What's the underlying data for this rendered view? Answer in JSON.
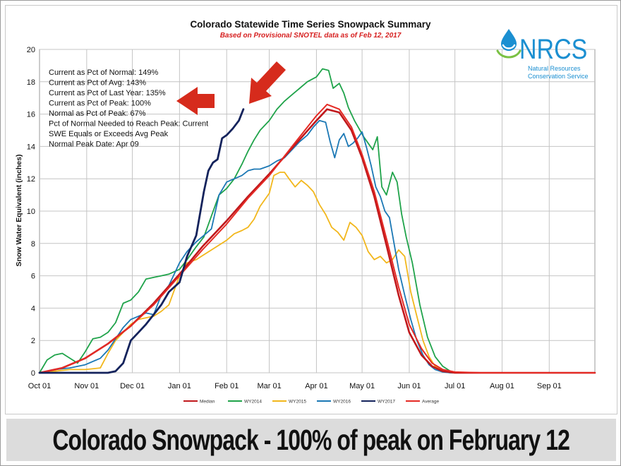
{
  "chart_data": {
    "type": "line",
    "title": "Colorado Statewide Time Series Snowpack Summary",
    "subtitle": "Based on Provisional SNOTEL data as of Feb 12, 2017",
    "ylabel": "Snow Water Equivalent (inches)",
    "xlabel": "",
    "ylim": [
      0,
      20
    ],
    "y_ticks": [
      0,
      2,
      4,
      6,
      8,
      10,
      12,
      14,
      16,
      18,
      20
    ],
    "x_range_days": [
      0,
      365
    ],
    "x_ticks": [
      {
        "label": "Oct 01",
        "day": 0
      },
      {
        "label": "Nov 01",
        "day": 31
      },
      {
        "label": "Dec 01",
        "day": 61
      },
      {
        "label": "Jan 01",
        "day": 92
      },
      {
        "label": "Feb 01",
        "day": 123
      },
      {
        "label": "Mar 01",
        "day": 151
      },
      {
        "label": "Apr 01",
        "day": 182
      },
      {
        "label": "May 01",
        "day": 212
      },
      {
        "label": "Jun 01",
        "day": 243
      },
      {
        "label": "Jul 01",
        "day": 273
      },
      {
        "label": "Aug 01",
        "day": 304
      },
      {
        "label": "Sep 01",
        "day": 335
      }
    ],
    "grid": true,
    "legend_placement": "bottom",
    "annotations": [
      "Current  as Pct of Normal: 149%",
      "Current  as Pct of Avg: 143%",
      "Current  as Pct of Last Year: 135%",
      "Current  as Pct of Peak: 100%",
      "Normal  as Pct of Peak: 67%",
      "Pct of Normal Needed  to Reach Peak: Current",
      "SWE Equals or Exceeds Avg Peak",
      "Normal Peak Date: Apr 09"
    ],
    "series": [
      {
        "name": "Median",
        "color": "#c0181c",
        "width": 2.6,
        "x": [
          0,
          15,
          30,
          45,
          60,
          75,
          92,
          107,
          123,
          137,
          151,
          166,
          182,
          189,
          197,
          205,
          212,
          220,
          228,
          236,
          243,
          251,
          258,
          265,
          273,
          290,
          365
        ],
        "y": [
          0,
          0.3,
          0.9,
          1.8,
          2.9,
          4.3,
          6.1,
          7.8,
          9.4,
          10.9,
          12.3,
          13.9,
          15.6,
          16.3,
          16.1,
          15.0,
          13.3,
          10.9,
          7.9,
          4.8,
          2.5,
          1.1,
          0.4,
          0.1,
          0,
          0,
          0
        ]
      },
      {
        "name": "WY2014",
        "color": "#1fa34a",
        "width": 1.8,
        "x": [
          0,
          5,
          10,
          15,
          20,
          25,
          30,
          35,
          40,
          45,
          50,
          55,
          60,
          65,
          70,
          75,
          80,
          85,
          92,
          97,
          103,
          108,
          113,
          118,
          123,
          128,
          133,
          137,
          141,
          145,
          151,
          156,
          161,
          166,
          171,
          176,
          182,
          186,
          190,
          193,
          197,
          200,
          203,
          207,
          210,
          213,
          216,
          219,
          222,
          225,
          228,
          232,
          235,
          238,
          241,
          245,
          250,
          255,
          260,
          265,
          270,
          275,
          285,
          365
        ],
        "y": [
          0,
          0.8,
          1.1,
          1.2,
          0.9,
          0.6,
          1.3,
          2.1,
          2.2,
          2.5,
          3.1,
          4.3,
          4.5,
          5.0,
          5.8,
          5.9,
          6.0,
          6.1,
          6.4,
          7.0,
          7.8,
          8.4,
          9.7,
          11.0,
          11.4,
          12.0,
          12.9,
          13.7,
          14.4,
          15.0,
          15.6,
          16.3,
          16.8,
          17.2,
          17.6,
          18.0,
          18.3,
          18.8,
          18.7,
          17.6,
          17.9,
          17.3,
          16.4,
          15.6,
          15.1,
          14.6,
          14.2,
          13.8,
          14.6,
          11.5,
          11.0,
          12.4,
          11.8,
          9.8,
          8.4,
          6.8,
          4.2,
          2.2,
          1.0,
          0.4,
          0.1,
          0,
          0,
          0
        ]
      },
      {
        "name": "WY2015",
        "color": "#f2b71c",
        "width": 1.8,
        "x": [
          0,
          10,
          20,
          30,
          40,
          45,
          50,
          55,
          60,
          65,
          70,
          75,
          80,
          85,
          92,
          97,
          103,
          108,
          113,
          118,
          123,
          128,
          133,
          137,
          141,
          145,
          151,
          154,
          158,
          161,
          164,
          168,
          172,
          176,
          180,
          184,
          188,
          192,
          196,
          200,
          204,
          208,
          212,
          216,
          220,
          224,
          228,
          232,
          236,
          240,
          244,
          248,
          252,
          256,
          260,
          265,
          270,
          275,
          285,
          365
        ],
        "y": [
          0,
          0.1,
          0.2,
          0.2,
          0.3,
          1.2,
          2.0,
          2.5,
          3.0,
          3.3,
          3.4,
          3.5,
          3.8,
          4.2,
          6.0,
          6.8,
          7.0,
          7.3,
          7.6,
          7.9,
          8.2,
          8.6,
          8.8,
          9.0,
          9.5,
          10.3,
          11.1,
          12.2,
          12.4,
          12.4,
          12.0,
          11.5,
          11.9,
          11.6,
          11.2,
          10.4,
          9.8,
          9.0,
          8.7,
          8.2,
          9.3,
          9.0,
          8.5,
          7.5,
          7.0,
          7.2,
          6.8,
          7.0,
          7.6,
          7.2,
          5.0,
          3.5,
          2.0,
          1.0,
          0.4,
          0.1,
          0,
          0,
          0,
          0
        ]
      },
      {
        "name": "WY2016",
        "color": "#1b78b5",
        "width": 1.8,
        "x": [
          0,
          10,
          20,
          30,
          40,
          45,
          50,
          55,
          60,
          65,
          70,
          75,
          80,
          85,
          92,
          97,
          103,
          108,
          113,
          118,
          123,
          128,
          133,
          137,
          141,
          145,
          151,
          156,
          161,
          166,
          171,
          176,
          180,
          184,
          188,
          191,
          194,
          197,
          200,
          203,
          206,
          209,
          212,
          215,
          218,
          221,
          224,
          227,
          230,
          233,
          236,
          240,
          244,
          248,
          252,
          256,
          260,
          265,
          270,
          280,
          365
        ],
        "y": [
          0,
          0.2,
          0.3,
          0.5,
          0.9,
          1.4,
          2.1,
          2.8,
          3.3,
          3.5,
          3.7,
          3.6,
          4.8,
          5.4,
          6.8,
          7.5,
          8.1,
          8.5,
          8.9,
          11.0,
          11.8,
          12.0,
          12.2,
          12.5,
          12.6,
          12.6,
          12.8,
          13.1,
          13.3,
          13.8,
          14.3,
          14.7,
          15.2,
          15.6,
          15.5,
          14.3,
          13.3,
          14.4,
          14.8,
          14.0,
          14.2,
          14.5,
          14.9,
          13.9,
          12.8,
          11.5,
          10.9,
          10.0,
          9.6,
          8.0,
          6.4,
          4.8,
          3.3,
          2.0,
          1.1,
          0.5,
          0.2,
          0.05,
          0,
          0,
          0
        ]
      },
      {
        "name": "WY2017",
        "color": "#14235c",
        "width": 2.8,
        "x": [
          0,
          20,
          35,
          45,
          50,
          55,
          60,
          65,
          70,
          75,
          80,
          85,
          92,
          97,
          103,
          108,
          111,
          114,
          117,
          120,
          123,
          127,
          131,
          134
        ],
        "y": [
          0,
          0,
          0,
          0,
          0.1,
          0.6,
          2.0,
          2.5,
          3.0,
          3.6,
          4.2,
          5.0,
          5.6,
          7.2,
          8.5,
          11.2,
          12.5,
          13.0,
          13.2,
          14.5,
          14.7,
          15.1,
          15.6,
          16.3
        ]
      },
      {
        "name": "Average",
        "color": "#e52a24",
        "width": 2.0,
        "x": [
          0,
          15,
          30,
          45,
          60,
          75,
          92,
          107,
          123,
          137,
          151,
          166,
          182,
          189,
          197,
          205,
          212,
          220,
          228,
          236,
          243,
          251,
          258,
          265,
          273,
          290,
          365
        ],
        "y": [
          0,
          0.3,
          0.9,
          1.8,
          2.9,
          4.2,
          6.0,
          7.6,
          9.2,
          10.8,
          12.2,
          14.0,
          15.9,
          16.6,
          16.3,
          15.2,
          13.5,
          11.2,
          8.3,
          5.3,
          3.0,
          1.5,
          0.6,
          0.2,
          0.05,
          0,
          0
        ]
      }
    ]
  },
  "logo": {
    "text": "NRCS",
    "line1": "Natural Resources",
    "line2": "Conservation Service",
    "color": "#1b8fd1"
  },
  "arrow_color": "#d62b1c",
  "banner": {
    "text": "Colorado Snowpack - 100% of peak on February 12"
  }
}
